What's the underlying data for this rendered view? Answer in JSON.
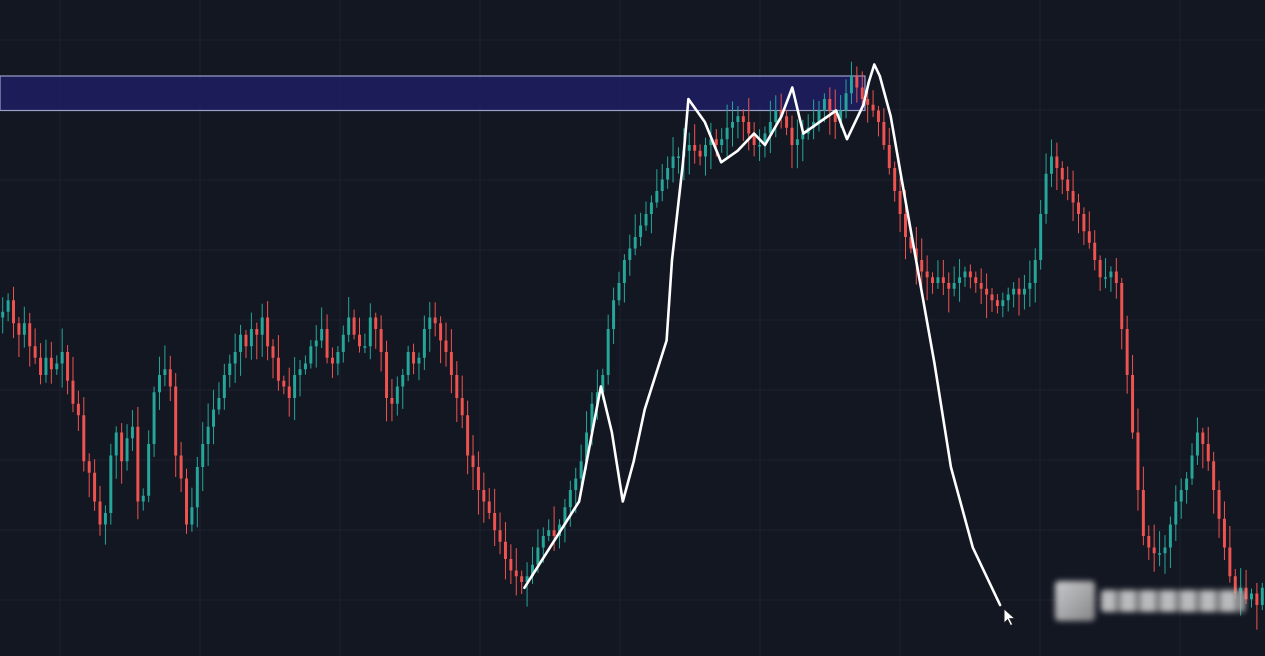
{
  "chart_data": {
    "type": "candlestick",
    "xlabel": "",
    "ylabel": "",
    "grid": true,
    "y_range": [
      0,
      100
    ],
    "colors": {
      "background": "#131722",
      "grid": "#1e2230",
      "up": "#26a69a",
      "down": "#ef5350",
      "zone_fill": "#1f1f6b",
      "zone_stroke": "#9aa0c8",
      "drawing": "#ffffff"
    },
    "resistance_zone": {
      "price_low": 86.0,
      "price_high": 92.0,
      "ends_at_candle": 160
    },
    "close_series": [
      51,
      53,
      49,
      47,
      49,
      45,
      43,
      40,
      43,
      41,
      42,
      44,
      39,
      35,
      33,
      25,
      23,
      18,
      14,
      16,
      26,
      30,
      25,
      29,
      31,
      18,
      19,
      28,
      37,
      40,
      41,
      38,
      26,
      22,
      14,
      17,
      24,
      28,
      31,
      34,
      36,
      40,
      42,
      44,
      47,
      45,
      48,
      47,
      50,
      45,
      43,
      39,
      38,
      36,
      40,
      41,
      42,
      45,
      46,
      48,
      43,
      42,
      44,
      47,
      50,
      47,
      45,
      45,
      50,
      48,
      44,
      36,
      35,
      38,
      40,
      44,
      42,
      43,
      48,
      50,
      49,
      46,
      44,
      40,
      36,
      33,
      26,
      24,
      20,
      18,
      16,
      13,
      11,
      8,
      6,
      5,
      4,
      5,
      7,
      10,
      12,
      13,
      12,
      14,
      17,
      20,
      22,
      25,
      30,
      35,
      37,
      40,
      48,
      53,
      56,
      60,
      62,
      64,
      66,
      68,
      70,
      72,
      74,
      76,
      78,
      78,
      79,
      80,
      79,
      78,
      80,
      81,
      80,
      81,
      83,
      84,
      85,
      84,
      82,
      80,
      80,
      82,
      84,
      86,
      85,
      83,
      80,
      81,
      82,
      83,
      84,
      86,
      88,
      86,
      84,
      86,
      89,
      92,
      90,
      88,
      87,
      86,
      84,
      80,
      76,
      72,
      68,
      64,
      62,
      60,
      58,
      57,
      56,
      57,
      56,
      55,
      56,
      57,
      58,
      57,
      56,
      55,
      54,
      53,
      52,
      53,
      54,
      55,
      54,
      55,
      56,
      60,
      68,
      75,
      78,
      76,
      74,
      72,
      70,
      68,
      65,
      63,
      60,
      57,
      57,
      58,
      56,
      48,
      40,
      30,
      20,
      12,
      10,
      9,
      9,
      10,
      14,
      18,
      20,
      22,
      26,
      30,
      28,
      25,
      20,
      15,
      10,
      5,
      2,
      3,
      1,
      2,
      0,
      3
    ],
    "drawn_path": [
      [
        0,
        3
      ],
      [
        10,
        18
      ],
      [
        14,
        38
      ],
      [
        16,
        30
      ],
      [
        18,
        18
      ],
      [
        20,
        25
      ],
      [
        22,
        34
      ],
      [
        26,
        46
      ],
      [
        27,
        60
      ],
      [
        29,
        77
      ],
      [
        30,
        88
      ],
      [
        33,
        84
      ],
      [
        36,
        77
      ],
      [
        39,
        79
      ],
      [
        42,
        82
      ],
      [
        44,
        80
      ],
      [
        47,
        85
      ],
      [
        49,
        90
      ],
      [
        51,
        82
      ],
      [
        54,
        84
      ],
      [
        57,
        86
      ],
      [
        59,
        81
      ],
      [
        62,
        87
      ],
      [
        63,
        91
      ],
      [
        64,
        94
      ],
      [
        65,
        92
      ],
      [
        67,
        85
      ],
      [
        69,
        74
      ],
      [
        72,
        58
      ],
      [
        75,
        42
      ],
      [
        78,
        24
      ],
      [
        82,
        10
      ],
      [
        86,
        2
      ],
      [
        87,
        0
      ]
    ],
    "drawn_path_x_range": [
      0,
      87
    ]
  }
}
